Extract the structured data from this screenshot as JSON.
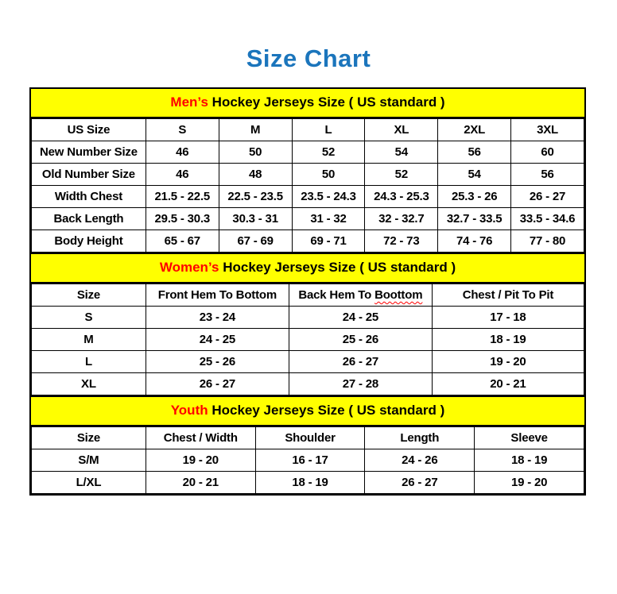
{
  "title": "Size Chart",
  "colors": {
    "title_blue": "#1b75bc",
    "section_header_yellow": "#ffff00",
    "section_highlight_red": "#ff0000",
    "border_black": "#000000",
    "background_white": "#ffffff"
  },
  "sections": {
    "mens": {
      "highlight": "Men’s",
      "rest": " Hockey Jerseys Size ( US standard )",
      "columns": [
        "US Size",
        "S",
        "M",
        "L",
        "XL",
        "2XL",
        "3XL"
      ],
      "rows": [
        {
          "label": "New Number Size",
          "values": [
            "46",
            "50",
            "52",
            "54",
            "56",
            "60"
          ]
        },
        {
          "label": "Old Number Size",
          "values": [
            "46",
            "48",
            "50",
            "52",
            "54",
            "56"
          ]
        },
        {
          "label": "Width Chest",
          "values": [
            "21.5 - 22.5",
            "22.5 - 23.5",
            "23.5 - 24.3",
            "24.3 - 25.3",
            "25.3 - 26",
            "26 - 27"
          ]
        },
        {
          "label": "Back Length",
          "values": [
            "29.5 - 30.3",
            "30.3 - 31",
            "31 - 32",
            "32 - 32.7",
            "32.7 - 33.5",
            "33.5 - 34.6"
          ]
        },
        {
          "label": "Body Height",
          "values": [
            "65 - 67",
            "67 - 69",
            "69 - 71",
            "72 - 73",
            "74 - 76",
            "77 - 80"
          ]
        }
      ]
    },
    "womens": {
      "highlight": "Women’s",
      "rest": " Hockey Jerseys Size ( US standard )",
      "columns": [
        "Size",
        "Front Hem To Bottom",
        "Back Hem To ",
        "Chest / Pit To Pit"
      ],
      "misspelled_word": "Boottom",
      "rows": [
        {
          "label": "S",
          "values": [
            "23 - 24",
            "24 - 25",
            "17 - 18"
          ]
        },
        {
          "label": "M",
          "values": [
            "24 - 25",
            "25 - 26",
            "18 - 19"
          ]
        },
        {
          "label": "L",
          "values": [
            "25 - 26",
            "26 - 27",
            "19 - 20"
          ]
        },
        {
          "label": "XL",
          "values": [
            "26 - 27",
            "27 - 28",
            "20 - 21"
          ]
        }
      ]
    },
    "youth": {
      "highlight": "Youth",
      "rest": " Hockey Jerseys Size ( US standard )",
      "columns": [
        "Size",
        "Chest / Width",
        "Shoulder",
        "Length",
        "Sleeve"
      ],
      "rows": [
        {
          "label": "S/M",
          "values": [
            "19 - 20",
            "16 - 17",
            "24 - 26",
            "18 - 19"
          ]
        },
        {
          "label": "L/XL",
          "values": [
            "20 - 21",
            "18 - 19",
            "26 - 27",
            "19 - 20"
          ]
        }
      ]
    }
  }
}
